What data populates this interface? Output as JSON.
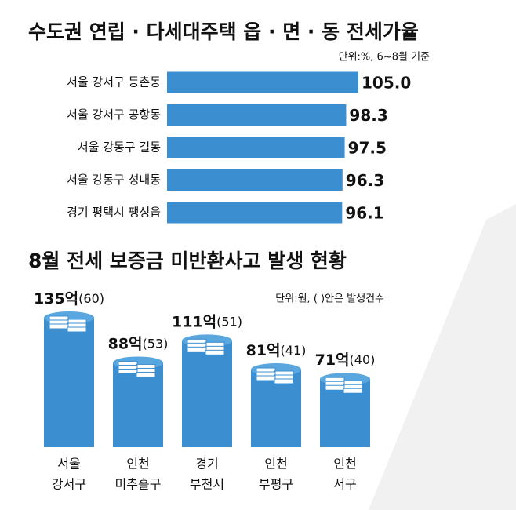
{
  "chart_data": [
    {
      "type": "hbar",
      "title": "수도권 연립 · 다세대주택 읍 · 면 · 동 전세가율",
      "subtitle": "단위:%, 6~8월 기준",
      "categories": [
        "서울 강서구 등촌동",
        "서울 강서구 공항동",
        "서울 강동구 길동",
        "서울 강동구 성내동",
        "경기 평택시 팽성읍"
      ],
      "values": [
        105.0,
        98.3,
        97.5,
        96.3,
        96.1
      ],
      "value_labels": [
        "105.0",
        "98.3",
        "97.5",
        "96.3",
        "96.1"
      ],
      "color": "#3b8fd0"
    },
    {
      "type": "bar",
      "title": "8월 전세 보증금 미반환사고 발생 현황",
      "subtitle": "단위:원, ( )안은 발생건수",
      "categories": [
        [
          "서울",
          "강서구"
        ],
        [
          "인천",
          "미추홀구"
        ],
        [
          "경기",
          "부천시"
        ],
        [
          "인천",
          "부평구"
        ],
        [
          "인천",
          "서구"
        ]
      ],
      "values": [
        135,
        88,
        111,
        81,
        71
      ],
      "value_labels": [
        "135억",
        "88억",
        "111억",
        "81억",
        "71억"
      ],
      "counts": [
        60,
        53,
        51,
        41,
        40
      ],
      "count_labels": [
        "(60)",
        "(53)",
        "(51)",
        "(41)",
        "(40)"
      ],
      "color": "#3b8fd0"
    }
  ]
}
